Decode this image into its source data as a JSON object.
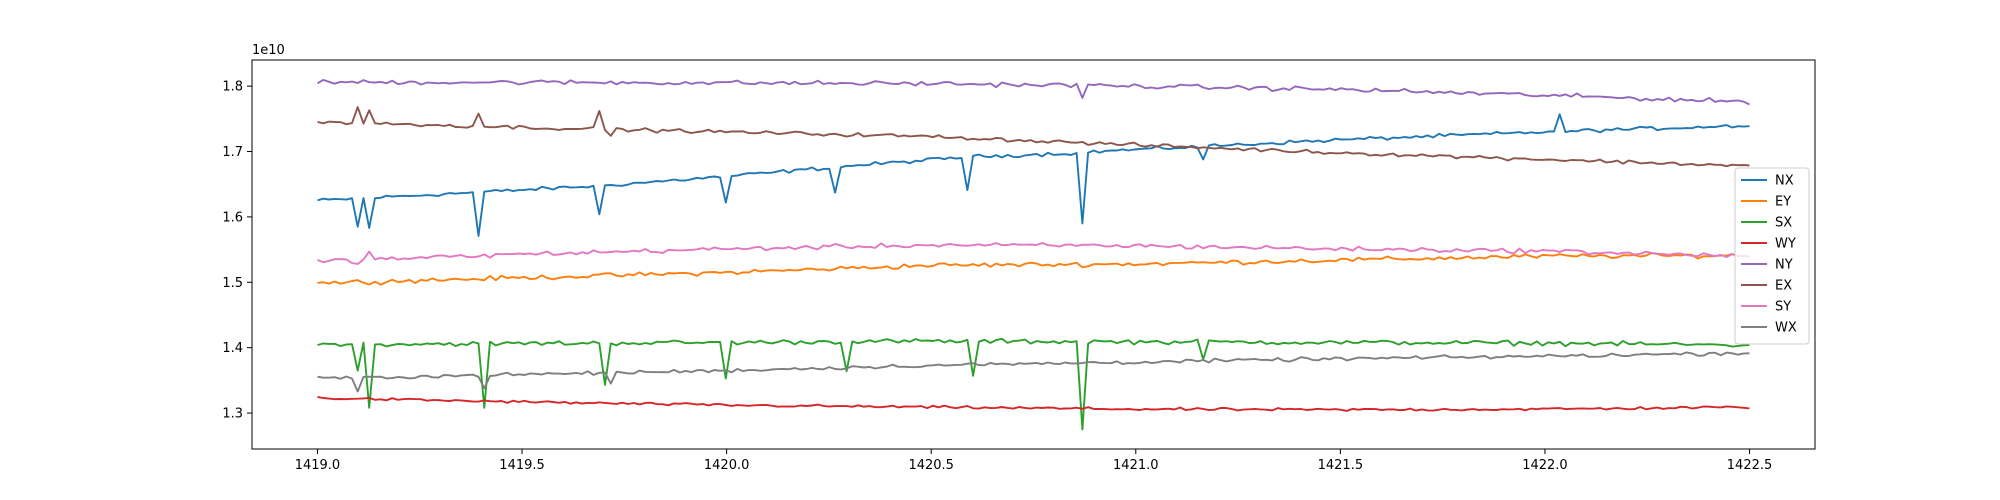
{
  "chart_data": {
    "type": "line",
    "title": "",
    "xlabel": "",
    "ylabel": "",
    "offset_text": "1e10",
    "xlim": [
      1418.84,
      1422.66
    ],
    "ylim": [
      1.245,
      1.84
    ],
    "x_ticks": [
      1419.0,
      1419.5,
      1420.0,
      1420.5,
      1421.0,
      1421.5,
      1422.0,
      1422.5
    ],
    "x_tick_labels": [
      "1419.0",
      "1419.5",
      "1420.0",
      "1420.5",
      "1421.0",
      "1421.5",
      "1422.0",
      "1422.5"
    ],
    "y_ticks": [
      1.3,
      1.4,
      1.5,
      1.6,
      1.7,
      1.8
    ],
    "y_tick_labels": [
      "1.3",
      "1.4",
      "1.5",
      "1.6",
      "1.7",
      "1.8"
    ],
    "grid": false,
    "legend_position": "center-right",
    "x_start": 1419.0,
    "x_end": 1422.5,
    "series": [
      {
        "name": "NX",
        "color": "#1f77b4",
        "base": [
          [
            1419.0,
            1.625
          ],
          [
            1419.4,
            1.638
          ],
          [
            1419.7,
            1.648
          ],
          [
            1420.0,
            1.662
          ],
          [
            1420.3,
            1.678
          ],
          [
            1420.6,
            1.692
          ],
          [
            1420.87,
            1.698
          ],
          [
            1420.9,
            1.7
          ],
          [
            1421.1,
            1.706
          ],
          [
            1421.5,
            1.718
          ],
          [
            1422.0,
            1.73
          ],
          [
            1422.5,
            1.74
          ]
        ],
        "noise": 0.002,
        "spikes": [
          [
            1419.1,
            1.585
          ],
          [
            1419.12,
            1.583
          ],
          [
            1419.4,
            1.571
          ],
          [
            1419.69,
            1.604
          ],
          [
            1420.0,
            1.622
          ],
          [
            1420.27,
            1.637
          ],
          [
            1420.59,
            1.641
          ],
          [
            1420.87,
            1.59
          ],
          [
            1421.17,
            1.688
          ],
          [
            1422.03,
            1.757
          ]
        ]
      },
      {
        "name": "EY",
        "color": "#ff7f0e",
        "base": [
          [
            1419.0,
            1.499
          ],
          [
            1419.5,
            1.507
          ],
          [
            1420.0,
            1.515
          ],
          [
            1420.5,
            1.526
          ],
          [
            1421.0,
            1.528
          ],
          [
            1421.5,
            1.534
          ],
          [
            1422.0,
            1.54
          ],
          [
            1422.5,
            1.541
          ]
        ],
        "noise": 0.0025,
        "spikes": []
      },
      {
        "name": "SX",
        "color": "#2ca02c",
        "base": [
          [
            1419.0,
            1.405
          ],
          [
            1420.0,
            1.408
          ],
          [
            1420.5,
            1.41
          ],
          [
            1421.0,
            1.409
          ],
          [
            1421.5,
            1.408
          ],
          [
            1422.0,
            1.407
          ],
          [
            1422.5,
            1.404
          ]
        ],
        "noise": 0.0025,
        "spikes": [
          [
            1419.1,
            1.365
          ],
          [
            1419.12,
            1.308
          ],
          [
            1419.41,
            1.308
          ],
          [
            1419.7,
            1.343
          ],
          [
            1420.0,
            1.353
          ],
          [
            1420.29,
            1.364
          ],
          [
            1420.6,
            1.357
          ],
          [
            1420.87,
            1.275
          ],
          [
            1421.17,
            1.382
          ]
        ]
      },
      {
        "name": "WY",
        "color": "#d62728",
        "base": [
          [
            1419.0,
            1.323
          ],
          [
            1419.5,
            1.317
          ],
          [
            1420.0,
            1.312
          ],
          [
            1420.5,
            1.309
          ],
          [
            1421.0,
            1.306
          ],
          [
            1421.5,
            1.305
          ],
          [
            1422.0,
            1.306
          ],
          [
            1422.5,
            1.309
          ]
        ],
        "noise": 0.0015,
        "spikes": []
      },
      {
        "name": "NY",
        "color": "#9467bd",
        "base": [
          [
            1419.0,
            1.806
          ],
          [
            1419.5,
            1.806
          ],
          [
            1420.0,
            1.805
          ],
          [
            1420.5,
            1.804
          ],
          [
            1421.0,
            1.8
          ],
          [
            1421.5,
            1.795
          ],
          [
            1422.0,
            1.786
          ],
          [
            1422.5,
            1.776
          ]
        ],
        "noise": 0.0025,
        "spikes": [
          [
            1420.87,
            1.782
          ]
        ]
      },
      {
        "name": "EX",
        "color": "#8c564b",
        "base": [
          [
            1419.0,
            1.745
          ],
          [
            1419.5,
            1.737
          ],
          [
            1420.0,
            1.73
          ],
          [
            1420.5,
            1.723
          ],
          [
            1421.0,
            1.71
          ],
          [
            1421.5,
            1.698
          ],
          [
            1422.0,
            1.688
          ],
          [
            1422.5,
            1.678
          ]
        ],
        "noise": 0.002,
        "spikes": [
          [
            1419.1,
            1.768
          ],
          [
            1419.12,
            1.763
          ],
          [
            1419.4,
            1.758
          ],
          [
            1419.69,
            1.762
          ],
          [
            1419.71,
            1.724
          ]
        ]
      },
      {
        "name": "SY",
        "color": "#e377c2",
        "base": [
          [
            1419.0,
            1.532
          ],
          [
            1419.5,
            1.543
          ],
          [
            1420.0,
            1.551
          ],
          [
            1420.5,
            1.557
          ],
          [
            1421.0,
            1.556
          ],
          [
            1421.5,
            1.551
          ],
          [
            1422.0,
            1.548
          ],
          [
            1422.5,
            1.54
          ]
        ],
        "noise": 0.0025,
        "spikes": [
          [
            1419.1,
            1.528
          ],
          [
            1419.12,
            1.547
          ]
        ]
      },
      {
        "name": "WX",
        "color": "#7f7f7f",
        "base": [
          [
            1419.0,
            1.353
          ],
          [
            1419.5,
            1.359
          ],
          [
            1420.0,
            1.365
          ],
          [
            1420.5,
            1.373
          ],
          [
            1421.0,
            1.378
          ],
          [
            1421.5,
            1.383
          ],
          [
            1422.0,
            1.387
          ],
          [
            1422.5,
            1.392
          ]
        ],
        "noise": 0.002,
        "spikes": [
          [
            1419.1,
            1.333
          ],
          [
            1419.41,
            1.338
          ],
          [
            1419.71,
            1.345
          ]
        ]
      }
    ]
  }
}
